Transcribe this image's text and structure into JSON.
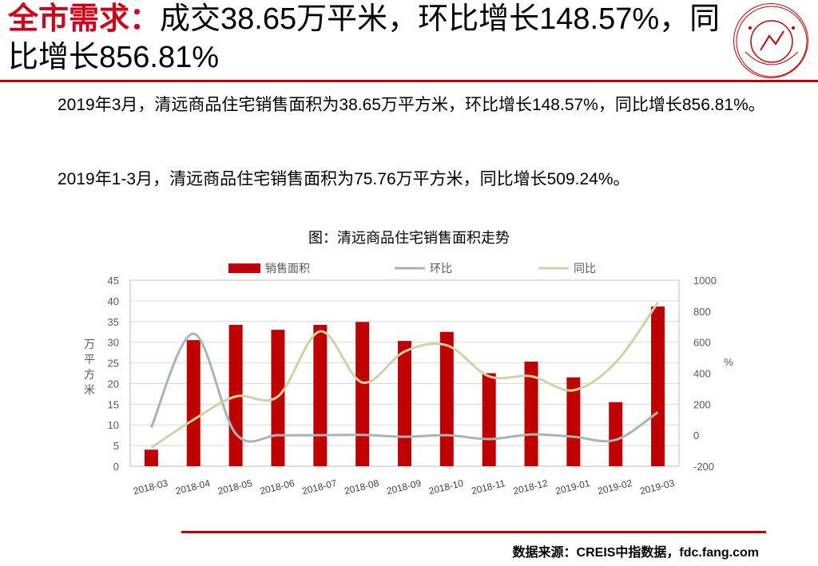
{
  "headline": {
    "prefix": "全市需求：",
    "rest": "成交38.65万平米，环比增长148.57%，同比增长856.81%"
  },
  "paragraphs": [
    "2019年3月，清远商品住宅销售面积为38.65万平方米，环比增长148.57%，同比增长856.81%。",
    "2019年1-3月，清远商品住宅销售面积为75.76万平方米，同比增长509.24%。"
  ],
  "source": "数据来源：CREIS中指数据，fdc.fang.com",
  "colors": {
    "accent": "#c00000",
    "bar": "#c00000",
    "mom": "#a9b4b4",
    "yoy": "#cfd3a4"
  },
  "chart_data": {
    "type": "bar",
    "title": "图：清远商品住宅销售面积走势",
    "categories": [
      "2018-03",
      "2018-04",
      "2018-05",
      "2018-06",
      "2018-07",
      "2018-08",
      "2018-09",
      "2018-10",
      "2018-11",
      "2018-12",
      "2019-01",
      "2019-02",
      "2019-03"
    ],
    "series": [
      {
        "name": "销售面积",
        "type": "bar",
        "axis": "left",
        "values": [
          4.0,
          30.5,
          34.2,
          33.0,
          34.2,
          34.9,
          30.3,
          32.5,
          22.5,
          25.3,
          21.5,
          15.5,
          38.65
        ]
      },
      {
        "name": "环比",
        "type": "line",
        "axis": "right",
        "values": [
          50,
          655,
          10,
          0,
          0,
          2,
          -10,
          0,
          -25,
          5,
          -10,
          -30,
          148.57
        ]
      },
      {
        "name": "同比",
        "type": "line",
        "axis": "right",
        "values": [
          -80,
          100,
          250,
          250,
          670,
          340,
          540,
          580,
          380,
          380,
          290,
          470,
          856.81
        ]
      }
    ],
    "yleft": {
      "label": "万平方米",
      "min": 0,
      "max": 45,
      "ticks": [
        0,
        5,
        10,
        15,
        20,
        25,
        30,
        35,
        40,
        45
      ]
    },
    "yright": {
      "label": "%",
      "min": -200,
      "max": 1000,
      "ticks": [
        -200,
        0,
        200,
        400,
        600,
        800,
        1000
      ]
    },
    "grid": true,
    "legend": "top"
  }
}
